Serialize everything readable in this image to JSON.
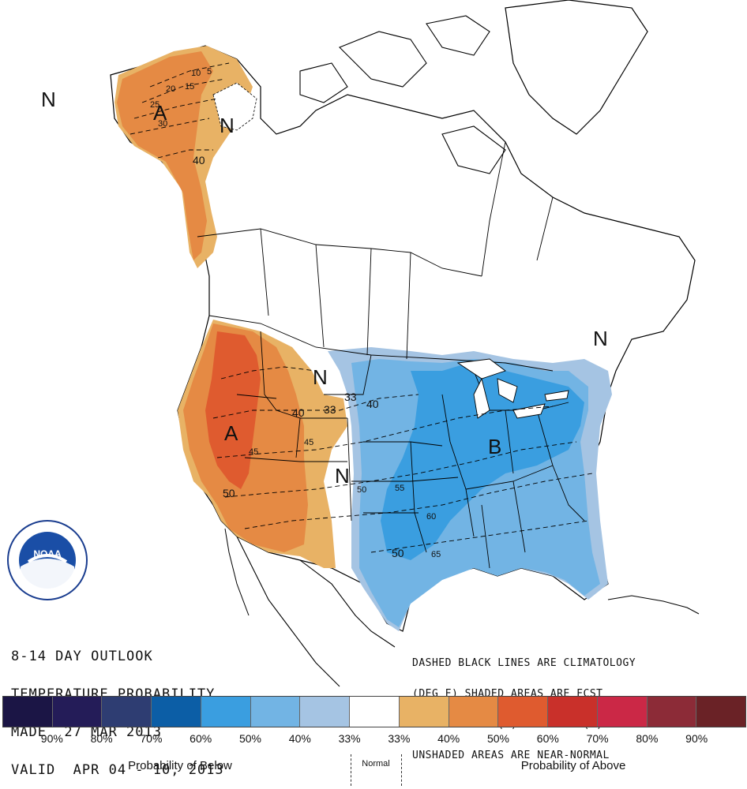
{
  "map": {
    "region_labels": [
      "A",
      "N",
      "N",
      "N",
      "N",
      "A",
      "B"
    ],
    "contour_labels": [
      "10",
      "5",
      "20",
      "15",
      "25",
      "30",
      "40",
      "40",
      "33",
      "40",
      "33",
      "45",
      "45",
      "50",
      "50",
      "55",
      "60",
      "65",
      "50"
    ]
  },
  "title": {
    "lines": [
      "8-14 DAY OUTLOOK",
      "TEMPERATURE PROBABILITY",
      "MADE  27 MAR 2013",
      "VALID  APR 04 - 10, 2013"
    ]
  },
  "note": {
    "lines": [
      "DASHED BLACK LINES ARE CLIMATOLOGY",
      "(DEG F) SHADED AREAS ARE FCST",
      "VALUES ABOVE (A) OR BELOW (B) NORMAL",
      "UNSHADED AREAS ARE NEAR-NORMAL"
    ]
  },
  "logo": {
    "text": "NOAA",
    "icon": "noaa-logo-icon"
  },
  "colorbar": {
    "colors": [
      "#1b1545",
      "#241c58",
      "#2e3d72",
      "#0c5ea6",
      "#3a9ee0",
      "#72b4e4",
      "#a5c4e3",
      "#ffffff",
      "#e8b265",
      "#e58a44",
      "#df5b2f",
      "#c9302a",
      "#cb2846",
      "#8c2b37",
      "#6a2226"
    ],
    "percent_labels": [
      "90%",
      "80%",
      "70%",
      "60%",
      "50%",
      "40%",
      "33%",
      "33%",
      "40%",
      "50%",
      "60%",
      "70%",
      "80%",
      "90%"
    ],
    "below_label": "Probability of Below",
    "normal_label": "Normal",
    "above_label": "Probability of Above"
  }
}
